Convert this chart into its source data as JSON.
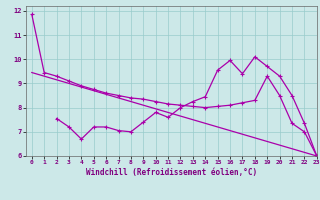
{
  "xlabel": "Windchill (Refroidissement éolien,°C)",
  "xlim": [
    -0.5,
    23
  ],
  "ylim": [
    6,
    12.2
  ],
  "yticks": [
    6,
    7,
    8,
    9,
    10,
    11,
    12
  ],
  "xticks": [
    0,
    1,
    2,
    3,
    4,
    5,
    6,
    7,
    8,
    9,
    10,
    11,
    12,
    13,
    14,
    15,
    16,
    17,
    18,
    19,
    20,
    21,
    22,
    23
  ],
  "bg_color": "#cce8e8",
  "line_color": "#aa00aa",
  "line1_x": [
    0,
    1,
    2,
    3,
    4,
    5,
    6,
    7,
    8,
    9,
    10,
    11,
    12,
    13,
    14,
    15,
    16,
    17,
    18,
    19,
    20,
    21,
    22,
    23
  ],
  "line1_y": [
    11.85,
    9.45,
    9.3,
    9.1,
    8.9,
    8.75,
    8.6,
    8.5,
    8.4,
    8.35,
    8.25,
    8.15,
    8.1,
    8.05,
    8.0,
    8.05,
    8.1,
    8.2,
    8.3,
    9.3,
    8.5,
    7.35,
    7.0,
    6.0
  ],
  "line2_x": [
    2,
    3,
    4,
    5,
    6,
    7,
    8,
    9,
    10,
    11,
    12,
    13,
    14,
    15,
    16,
    17,
    18,
    19,
    20,
    21,
    22,
    23
  ],
  "line2_y": [
    7.55,
    7.2,
    6.7,
    7.2,
    7.2,
    7.05,
    7.0,
    7.4,
    7.8,
    7.6,
    8.0,
    8.25,
    8.45,
    9.55,
    9.95,
    9.4,
    10.1,
    9.7,
    9.3,
    8.5,
    7.35,
    6.0
  ],
  "line3_x": [
    0,
    23
  ],
  "line3_y": [
    9.45,
    6.0
  ]
}
